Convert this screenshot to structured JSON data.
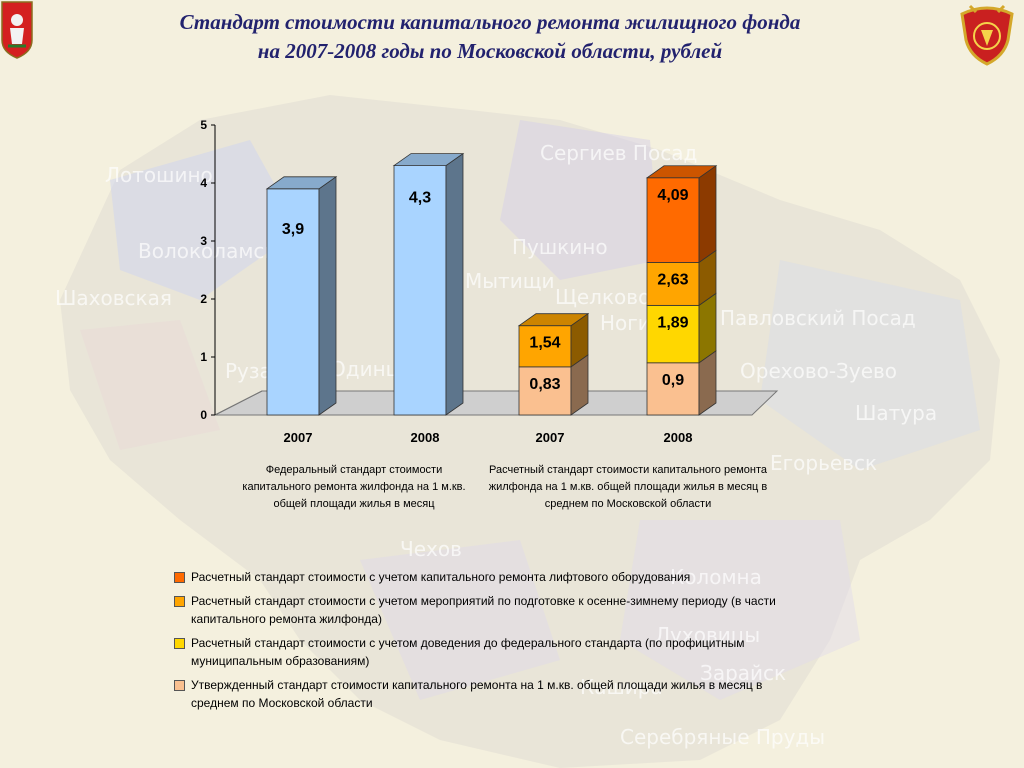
{
  "title_line1": "Стандарт стоимости капитального ремонта жилищного фонда",
  "title_line2": "на 2007-2008 годы по Московской области, рублей",
  "emblems": {
    "left": "moscow-oblast-coat-of-arms",
    "right": "organization-emblem"
  },
  "background_map_labels": [
    "Лотошино",
    "Волоколамск",
    "Шаховская",
    "Руза",
    "Одинцово",
    "Сергиев Посад",
    "Пушкино",
    "Мытищи",
    "Щелково",
    "Ногинск",
    "Павловский Посад",
    "Орехово-Зуево",
    "Шатура",
    "Егорьевск",
    "Чехов",
    "Коломна",
    "Луховицы",
    "Зарайск",
    "Кашира",
    "Серебряные Пруды"
  ],
  "chart_data": {
    "type": "bar",
    "stacked": true,
    "categories": [
      "2007",
      "2008",
      "2007",
      "2008"
    ],
    "ylim": [
      0,
      5
    ],
    "yticks": [
      0,
      1,
      2,
      3,
      4,
      5
    ],
    "grid": false,
    "group_captions": [
      "Федеральный стандарт стоимости капитального ремонта жилфонда на 1 м.кв. общей площади жилья в месяц",
      "Расчетный стандарт стоимости капитального ремонта жилфонда на 1 м.кв. общей площади жилья в месяц в среднем по Московской области"
    ],
    "federal_values": [
      3.9,
      4.3,
      null,
      null
    ],
    "federal_labels": [
      "3,9",
      "4,3",
      "",
      ""
    ],
    "series": [
      {
        "name": "Утвержденный стандарт стоимости капитального ремонта на 1 м.кв. общей площади жилья в месяц в среднем по Московской области",
        "color": "#fac090",
        "values": [
          null,
          null,
          0.83,
          0.9
        ],
        "labels": [
          "",
          "",
          "0,83",
          "0,9"
        ]
      },
      {
        "name": "Расчетный стандарт стоимости с учетом доведения до федерального стандарта (по профицитным муниципальным образованиям)",
        "color": "#ffd700",
        "values": [
          null,
          null,
          0,
          0.99
        ],
        "labels": [
          "",
          "",
          "",
          "1,89"
        ]
      },
      {
        "name": "Расчетный стандарт стоимости с учетом мероприятий по подготовке к осенне-зимнему периоду (в части капитального ремонта жилфонда)",
        "color": "#ffa500",
        "values": [
          null,
          null,
          0.71,
          0.74
        ],
        "labels": [
          "",
          "",
          "1,54",
          "2,63"
        ]
      },
      {
        "name": "Расчетный стандарт стоимости с учетом капитального ремонта лифтового оборудования",
        "color": "#ff6a00",
        "values": [
          null,
          null,
          0,
          1.46
        ],
        "labels": [
          "",
          "",
          "",
          "4,09"
        ]
      }
    ],
    "legend_placement": "bottom"
  },
  "legend": [
    {
      "color": "#ff6a00",
      "text": "Расчетный стандарт стоимости с учетом капитального ремонта лифтового оборудования"
    },
    {
      "color": "#ffa500",
      "text": "Расчетный стандарт стоимости с учетом мероприятий по подготовке к осенне-зимнему периоду (в части капитального ремонта жилфонда)"
    },
    {
      "color": "#ffd700",
      "text": "Расчетный стандарт стоимости с учетом доведения до федерального стандарта (по профицитным муниципальным образованиям)"
    },
    {
      "color": "#fac090",
      "text": "Утвержденный стандарт стоимости капитального ремонта на 1 м.кв. общей площади жилья в месяц в среднем по Московской области"
    }
  ]
}
